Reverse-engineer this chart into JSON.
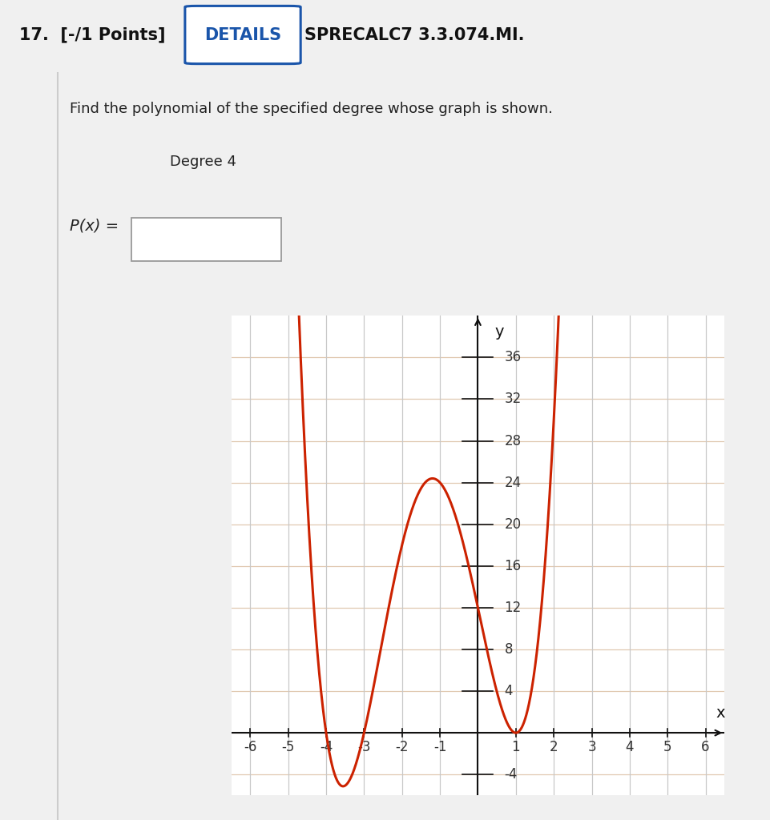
{
  "title_number": "17.",
  "title_points": "[-/1 Points]",
  "title_details": "DETAILS",
  "title_course": "SPRECALC7 3.3.074.MI.",
  "question_text": "Find the polynomial of the specified degree whose graph is shown.",
  "degree_text": "Degree 4",
  "px_label": "P(x) =",
  "bg_color": "#f0f0f0",
  "white_bg": "#ffffff",
  "header_bg": "#e8e8e8",
  "curve_color": "#cc2200",
  "grid_vertical_color": "#c8c8c8",
  "grid_horizontal_color": "#e0c8b0",
  "axis_color": "#111111",
  "tick_color": "#333333",
  "xlim": [
    -6.5,
    6.5
  ],
  "ylim": [
    -6,
    40
  ],
  "xticks": [
    -6,
    -5,
    -4,
    -3,
    -2,
    -1,
    1,
    2,
    3,
    4,
    5,
    6
  ],
  "yticks": [
    -4,
    4,
    8,
    12,
    16,
    20,
    24,
    28,
    32,
    36
  ],
  "polynomial_roots": [
    -4,
    -3,
    1,
    1
  ],
  "xlabel": "x",
  "ylabel": "y",
  "font_size_header": 15,
  "font_size_question": 13,
  "font_size_degree": 13,
  "font_size_axis_tick": 12,
  "font_size_axis_label": 14
}
